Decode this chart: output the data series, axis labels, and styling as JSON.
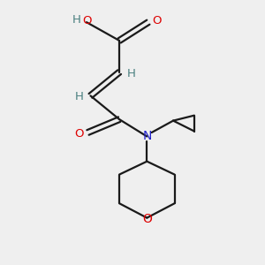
{
  "bg_color": "#efefef",
  "atom_colors": {
    "C": "#4a8080",
    "O": "#dd0000",
    "N": "#2222cc",
    "H": "#4a8080"
  },
  "line_color": "#1a1a1a",
  "figsize": [
    3.0,
    3.0
  ],
  "dpi": 100,
  "lw": 1.6
}
